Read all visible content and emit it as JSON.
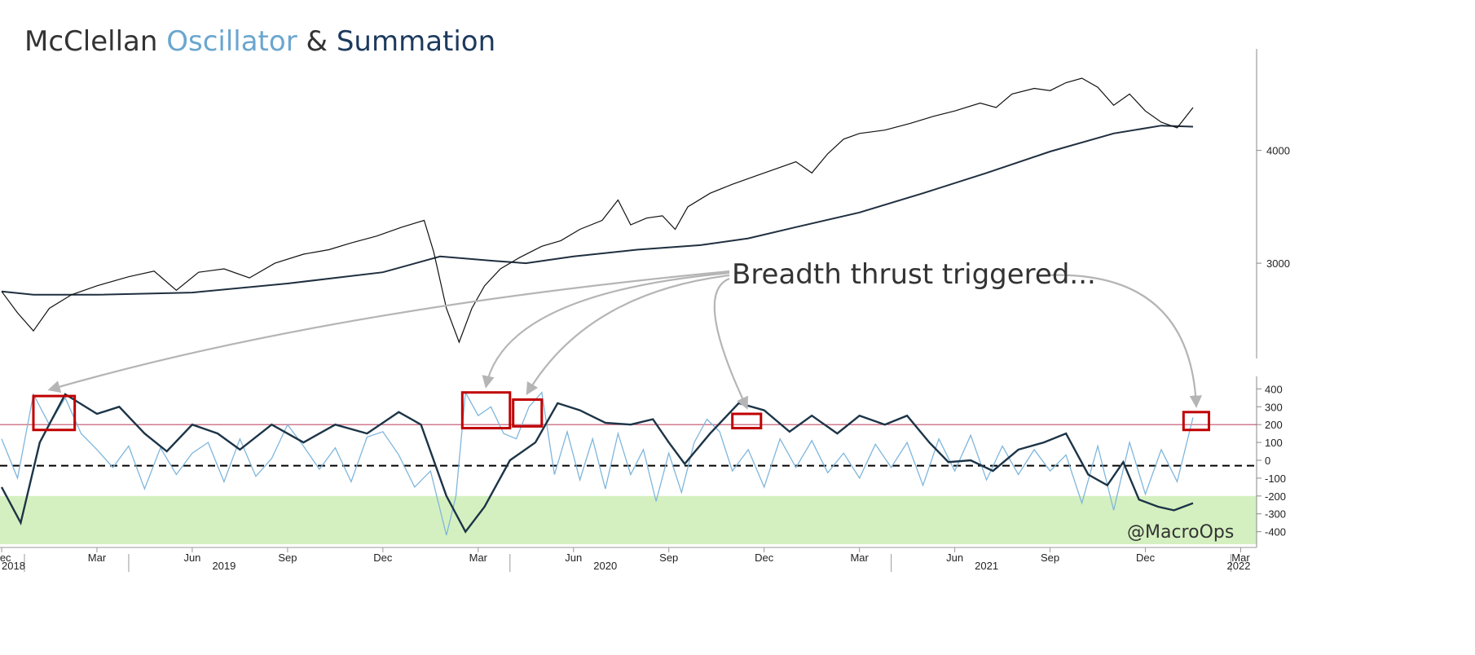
{
  "title": {
    "part1": "McClellan ",
    "part2": "Oscillator",
    "part3": " & ",
    "part4": "Summation",
    "colors": {
      "part1": "#333333",
      "part2": "#6aa6cf",
      "part3": "#333333",
      "part4": "#1c3a5e"
    }
  },
  "annotation": "Breadth thrust triggered...",
  "watermark": "@MacroOps",
  "colors": {
    "price": "#111111",
    "ma": "#1f2f3f",
    "oscillator": "#7fb6dc",
    "summation": "#1c3447",
    "upper_line": "#c0506a",
    "zero_line": "#000000",
    "oversold_zone": "#d5f0c0",
    "box": "#c00000",
    "arrow": "#b5b5b5"
  },
  "chart_data": [
    {
      "type": "line",
      "name": "price",
      "y_ticks": [
        3000,
        4000
      ],
      "ylim": [
        2300,
        4900
      ],
      "series": [
        {
          "values": [
            [
              0,
              2750
            ],
            [
              0.5,
              2560
            ],
            [
              1.0,
              2400
            ],
            [
              1.5,
              2600
            ],
            [
              2.2,
              2720
            ],
            [
              3.0,
              2800
            ],
            [
              4.0,
              2880
            ],
            [
              4.8,
              2930
            ],
            [
              5.5,
              2760
            ],
            [
              6.2,
              2920
            ],
            [
              7.0,
              2950
            ],
            [
              7.8,
              2870
            ],
            [
              8.6,
              3000
            ],
            [
              9.5,
              3080
            ],
            [
              10.3,
              3120
            ],
            [
              11.0,
              3180
            ],
            [
              11.8,
              3240
            ],
            [
              12.6,
              3320
            ],
            [
              13.3,
              3380
            ],
            [
              13.6,
              3100
            ],
            [
              14.0,
              2600
            ],
            [
              14.4,
              2300
            ],
            [
              14.8,
              2600
            ],
            [
              15.2,
              2800
            ],
            [
              15.7,
              2950
            ],
            [
              16.3,
              3050
            ],
            [
              17.0,
              3150
            ],
            [
              17.6,
              3200
            ],
            [
              18.2,
              3300
            ],
            [
              18.9,
              3380
            ],
            [
              19.4,
              3560
            ],
            [
              19.8,
              3340
            ],
            [
              20.3,
              3400
            ],
            [
              20.8,
              3420
            ],
            [
              21.2,
              3300
            ],
            [
              21.6,
              3500
            ],
            [
              22.3,
              3620
            ],
            [
              23.0,
              3700
            ],
            [
              23.8,
              3780
            ],
            [
              24.5,
              3850
            ],
            [
              25.0,
              3900
            ],
            [
              25.5,
              3800
            ],
            [
              26.0,
              3970
            ],
            [
              26.5,
              4100
            ],
            [
              27.0,
              4150
            ],
            [
              27.8,
              4180
            ],
            [
              28.6,
              4240
            ],
            [
              29.3,
              4300
            ],
            [
              30.0,
              4350
            ],
            [
              30.8,
              4420
            ],
            [
              31.3,
              4380
            ],
            [
              31.8,
              4500
            ],
            [
              32.5,
              4550
            ],
            [
              33.0,
              4530
            ],
            [
              33.5,
              4600
            ],
            [
              34.0,
              4640
            ],
            [
              34.5,
              4560
            ],
            [
              35.0,
              4400
            ],
            [
              35.5,
              4500
            ],
            [
              36.0,
              4350
            ],
            [
              36.5,
              4250
            ],
            [
              37.0,
              4200
            ],
            [
              37.5,
              4380
            ]
          ]
        },
        {
          "values": [
            [
              0,
              2750
            ],
            [
              1,
              2720
            ],
            [
              3,
              2720
            ],
            [
              6,
              2740
            ],
            [
              9,
              2820
            ],
            [
              12,
              2920
            ],
            [
              13.8,
              3060
            ],
            [
              15.5,
              3020
            ],
            [
              16.5,
              3000
            ],
            [
              18,
              3060
            ],
            [
              20,
              3120
            ],
            [
              22,
              3160
            ],
            [
              23.5,
              3220
            ],
            [
              25,
              3320
            ],
            [
              27,
              3450
            ],
            [
              29,
              3620
            ],
            [
              31,
              3800
            ],
            [
              33,
              3990
            ],
            [
              35,
              4150
            ],
            [
              36.5,
              4220
            ],
            [
              37.5,
              4210
            ]
          ]
        }
      ]
    },
    {
      "type": "line",
      "name": "oscillator",
      "y_ticks": [
        400,
        300,
        200,
        100,
        0,
        -100,
        -200,
        -300,
        -400
      ],
      "ylim": [
        -470,
        470
      ],
      "reference_lines": {
        "upper": 200,
        "zero": -30,
        "oversold_top": -200
      },
      "series": [
        {
          "values": [
            [
              0.0,
              120
            ],
            [
              0.5,
              -100
            ],
            [
              1.0,
              370
            ],
            [
              1.5,
              200
            ],
            [
              2.0,
              350
            ],
            [
              2.5,
              150
            ],
            [
              3.0,
              60
            ],
            [
              3.5,
              -40
            ],
            [
              4.0,
              80
            ],
            [
              4.5,
              -160
            ],
            [
              5.0,
              70
            ],
            [
              5.5,
              -80
            ],
            [
              6.0,
              40
            ],
            [
              6.5,
              100
            ],
            [
              7.0,
              -120
            ],
            [
              7.5,
              120
            ],
            [
              8.0,
              -90
            ],
            [
              8.5,
              10
            ],
            [
              9.0,
              200
            ],
            [
              9.5,
              80
            ],
            [
              10.0,
              -50
            ],
            [
              10.5,
              70
            ],
            [
              11.0,
              -120
            ],
            [
              11.5,
              130
            ],
            [
              12.0,
              160
            ],
            [
              12.5,
              30
            ],
            [
              13.0,
              -150
            ],
            [
              13.5,
              -60
            ],
            [
              14.0,
              -420
            ],
            [
              14.3,
              -200
            ],
            [
              14.6,
              380
            ],
            [
              15.0,
              250
            ],
            [
              15.4,
              300
            ],
            [
              15.8,
              150
            ],
            [
              16.2,
              120
            ],
            [
              16.6,
              300
            ],
            [
              17.0,
              380
            ],
            [
              17.4,
              -80
            ],
            [
              17.8,
              160
            ],
            [
              18.2,
              -110
            ],
            [
              18.6,
              120
            ],
            [
              19.0,
              -160
            ],
            [
              19.4,
              150
            ],
            [
              19.8,
              -80
            ],
            [
              20.2,
              60
            ],
            [
              20.6,
              -230
            ],
            [
              21.0,
              40
            ],
            [
              21.4,
              -180
            ],
            [
              21.8,
              100
            ],
            [
              22.2,
              230
            ],
            [
              22.6,
              160
            ],
            [
              23.0,
              -60
            ],
            [
              23.5,
              60
            ],
            [
              24.0,
              -150
            ],
            [
              24.5,
              120
            ],
            [
              25.0,
              -40
            ],
            [
              25.5,
              110
            ],
            [
              26.0,
              -70
            ],
            [
              26.5,
              40
            ],
            [
              27.0,
              -100
            ],
            [
              27.5,
              90
            ],
            [
              28.0,
              -40
            ],
            [
              28.5,
              100
            ],
            [
              29.0,
              -140
            ],
            [
              29.5,
              120
            ],
            [
              30.0,
              -60
            ],
            [
              30.5,
              140
            ],
            [
              31.0,
              -110
            ],
            [
              31.5,
              80
            ],
            [
              32.0,
              -80
            ],
            [
              32.5,
              60
            ],
            [
              33.0,
              -60
            ],
            [
              33.5,
              30
            ],
            [
              34.0,
              -240
            ],
            [
              34.5,
              80
            ],
            [
              35.0,
              -280
            ],
            [
              35.5,
              100
            ],
            [
              36.0,
              -190
            ],
            [
              36.5,
              60
            ],
            [
              37.0,
              -120
            ],
            [
              37.5,
              240
            ]
          ]
        },
        {
          "values": [
            [
              0.0,
              -150
            ],
            [
              0.6,
              -350
            ],
            [
              1.2,
              100
            ],
            [
              2.0,
              370
            ],
            [
              3.0,
              260
            ],
            [
              3.7,
              300
            ],
            [
              4.5,
              150
            ],
            [
              5.2,
              50
            ],
            [
              6.0,
              200
            ],
            [
              6.8,
              150
            ],
            [
              7.5,
              60
            ],
            [
              8.5,
              200
            ],
            [
              9.5,
              100
            ],
            [
              10.5,
              200
            ],
            [
              11.5,
              150
            ],
            [
              12.5,
              270
            ],
            [
              13.2,
              200
            ],
            [
              14.0,
              -200
            ],
            [
              14.6,
              -400
            ],
            [
              15.2,
              -260
            ],
            [
              16.0,
              0
            ],
            [
              16.8,
              100
            ],
            [
              17.5,
              320
            ],
            [
              18.2,
              280
            ],
            [
              19.0,
              210
            ],
            [
              19.8,
              200
            ],
            [
              20.5,
              230
            ],
            [
              21.0,
              100
            ],
            [
              21.5,
              -20
            ],
            [
              22.3,
              150
            ],
            [
              23.2,
              320
            ],
            [
              24.0,
              280
            ],
            [
              24.8,
              160
            ],
            [
              25.5,
              250
            ],
            [
              26.3,
              150
            ],
            [
              27.0,
              250
            ],
            [
              27.8,
              200
            ],
            [
              28.5,
              250
            ],
            [
              29.2,
              100
            ],
            [
              29.8,
              -10
            ],
            [
              30.5,
              0
            ],
            [
              31.2,
              -60
            ],
            [
              32.0,
              60
            ],
            [
              32.8,
              100
            ],
            [
              33.5,
              150
            ],
            [
              34.2,
              -80
            ],
            [
              34.8,
              -140
            ],
            [
              35.3,
              -10
            ],
            [
              35.8,
              -220
            ],
            [
              36.4,
              -260
            ],
            [
              36.9,
              -280
            ],
            [
              37.5,
              -240
            ]
          ]
        }
      ]
    }
  ],
  "x_axis": {
    "months": [
      {
        "label": "Dec",
        "pos": 0.0
      },
      {
        "label": "Mar",
        "pos": 3.0
      },
      {
        "label": "Jun",
        "pos": 6.0
      },
      {
        "label": "Sep",
        "pos": 9.0
      },
      {
        "label": "Dec",
        "pos": 12.0
      },
      {
        "label": "Mar",
        "pos": 15.0
      },
      {
        "label": "Jun",
        "pos": 18.0
      },
      {
        "label": "Sep",
        "pos": 21.0
      },
      {
        "label": "Dec",
        "pos": 24.0
      },
      {
        "label": "Mar",
        "pos": 27.0
      },
      {
        "label": "Jun",
        "pos": 30.0
      },
      {
        "label": "Sep",
        "pos": 33.0
      },
      {
        "label": "Dec",
        "pos": 36.0
      },
      {
        "label": "Mar",
        "pos": 39.0
      }
    ],
    "years": [
      {
        "label": "2018",
        "pos": 0.0
      },
      {
        "label": "2019",
        "pos": 7.0
      },
      {
        "label": "2020",
        "pos": 19.0
      },
      {
        "label": "2021",
        "pos": 31.0
      },
      {
        "label": "2022",
        "pos": 39.0
      }
    ],
    "range": [
      0.0,
      39.5
    ]
  },
  "signals": [
    {
      "from": 1.0,
      "to": 2.3,
      "low": 170,
      "high": 360
    },
    {
      "from": 14.5,
      "to": 16.0,
      "low": 180,
      "high": 380
    },
    {
      "from": 16.1,
      "to": 17.0,
      "low": 190,
      "high": 340
    },
    {
      "from": 23.0,
      "to": 23.9,
      "low": 180,
      "high": 260
    },
    {
      "from": 37.2,
      "to": 38.0,
      "low": 170,
      "high": 270
    }
  ]
}
